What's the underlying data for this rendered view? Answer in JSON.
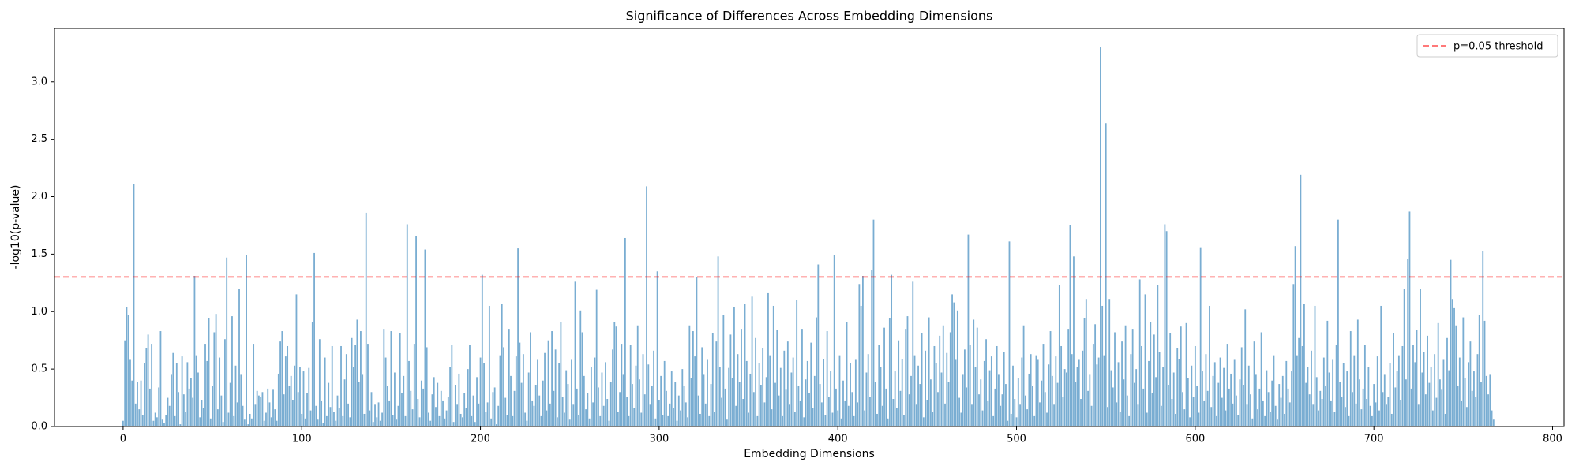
{
  "chart_data": {
    "type": "bar",
    "title": "Significance of Differences Across Embedding Dimensions",
    "xlabel": "Embedding Dimensions",
    "ylabel": "-log10(p-value)",
    "color": "#1f77b4",
    "opacity": 0.6,
    "threshold": {
      "value": 1.301,
      "label": "p=0.05 threshold",
      "color": "#ff0000",
      "opacity": 0.6,
      "style": "dashed"
    },
    "legend": "upper right",
    "grid": false,
    "xlim": [
      -38.4,
      806.4
    ],
    "xticks": [
      0,
      100,
      200,
      300,
      400,
      500,
      600,
      700,
      800
    ],
    "ylim": [
      0,
      3.465
    ],
    "yticks": [
      {
        "value": 0,
        "label": "0.0"
      },
      0.5,
      {
        "value": 1,
        "label": "1.0"
      },
      1.5,
      {
        "value": 2,
        "label": "2.0"
      },
      2.5,
      {
        "value": 3,
        "label": "3.0"
      }
    ],
    "x": [
      0,
      1,
      2,
      3,
      4,
      5,
      6,
      7,
      8,
      9,
      10,
      11,
      12,
      13,
      14,
      15,
      16,
      17,
      18,
      19,
      20,
      21,
      22,
      23,
      24,
      25,
      26,
      27,
      28,
      29,
      30,
      31,
      32,
      33,
      34,
      35,
      36,
      37,
      38,
      39,
      40,
      41,
      42,
      43,
      44,
      45,
      46,
      47,
      48,
      49,
      50,
      51,
      52,
      53,
      54,
      55,
      56,
      57,
      58,
      59,
      60,
      61,
      62,
      63,
      64,
      65,
      66,
      67,
      68,
      69,
      70,
      71,
      72,
      73,
      74,
      75,
      76,
      77,
      78,
      79,
      80,
      81,
      82,
      83,
      84,
      85,
      86,
      87,
      88,
      89,
      90,
      91,
      92,
      93,
      94,
      95,
      96,
      97,
      98,
      99,
      100,
      101,
      102,
      103,
      104,
      105,
      106,
      107,
      108,
      109,
      110,
      111,
      112,
      113,
      114,
      115,
      116,
      117,
      118,
      119,
      120,
      121,
      122,
      123,
      124,
      125,
      126,
      127,
      128,
      129,
      130,
      131,
      132,
      133,
      134,
      135,
      136,
      137,
      138,
      139,
      140,
      141,
      142,
      143,
      144,
      145,
      146,
      147,
      148,
      149,
      150,
      151,
      152,
      153,
      154,
      155,
      156,
      157,
      158,
      159,
      160,
      161,
      162,
      163,
      164,
      165,
      166,
      167,
      168,
      169,
      170,
      171,
      172,
      173,
      174,
      175,
      176,
      177,
      178,
      179,
      180,
      181,
      182,
      183,
      184,
      185,
      186,
      187,
      188,
      189,
      190,
      191,
      192,
      193,
      194,
      195,
      196,
      197,
      198,
      199,
      200,
      201,
      202,
      203,
      204,
      205,
      206,
      207,
      208,
      209,
      210,
      211,
      212,
      213,
      214,
      215,
      216,
      217,
      218,
      219,
      220,
      221,
      222,
      223,
      224,
      225,
      226,
      227,
      228,
      229,
      230,
      231,
      232,
      233,
      234,
      235,
      236,
      237,
      238,
      239,
      240,
      241,
      242,
      243,
      244,
      245,
      246,
      247,
      248,
      249,
      250,
      251,
      252,
      253,
      254,
      255,
      256,
      257,
      258,
      259,
      260,
      261,
      262,
      263,
      264,
      265,
      266,
      267,
      268,
      269,
      270,
      271,
      272,
      273,
      274,
      275,
      276,
      277,
      278,
      279,
      280,
      281,
      282,
      283,
      284,
      285,
      286,
      287,
      288,
      289,
      290,
      291,
      292,
      293,
      294,
      295,
      296,
      297,
      298,
      299,
      300,
      301,
      302,
      303,
      304,
      305,
      306,
      307,
      308,
      309,
      310,
      311,
      312,
      313,
      314,
      315,
      316,
      317,
      318,
      319,
      320,
      321,
      322,
      323,
      324,
      325,
      326,
      327,
      328,
      329,
      330,
      331,
      332,
      333,
      334,
      335,
      336,
      337,
      338,
      339,
      340,
      341,
      342,
      343,
      344,
      345,
      346,
      347,
      348,
      349,
      350,
      351,
      352,
      353,
      354,
      355,
      356,
      357,
      358,
      359,
      360,
      361,
      362,
      363,
      364,
      365,
      366,
      367,
      368,
      369,
      370,
      371,
      372,
      373,
      374,
      375,
      376,
      377,
      378,
      379,
      380,
      381,
      382,
      383,
      384,
      385,
      386,
      387,
      388,
      389,
      390,
      391,
      392,
      393,
      394,
      395,
      396,
      397,
      398,
      399,
      400,
      401,
      402,
      403,
      404,
      405,
      406,
      407,
      408,
      409,
      410,
      411,
      412,
      413,
      414,
      415,
      416,
      417,
      418,
      419,
      420,
      421,
      422,
      423,
      424,
      425,
      426,
      427,
      428,
      429,
      430,
      431,
      432,
      433,
      434,
      435,
      436,
      437,
      438,
      439,
      440,
      441,
      442,
      443,
      444,
      445,
      446,
      447,
      448,
      449,
      450,
      451,
      452,
      453,
      454,
      455,
      456,
      457,
      458,
      459,
      460,
      461,
      462,
      463,
      464,
      465,
      466,
      467,
      468,
      469,
      470,
      471,
      472,
      473,
      474,
      475,
      476,
      477,
      478,
      479,
      480,
      481,
      482,
      483,
      484,
      485,
      486,
      487,
      488,
      489,
      490,
      491,
      492,
      493,
      494,
      495,
      496,
      497,
      498,
      499,
      500,
      501,
      502,
      503,
      504,
      505,
      506,
      507,
      508,
      509,
      510,
      511,
      512,
      513,
      514,
      515,
      516,
      517,
      518,
      519,
      520,
      521,
      522,
      523,
      524,
      525,
      526,
      527,
      528,
      529,
      530,
      531,
      532,
      533,
      534,
      535,
      536,
      537,
      538,
      539,
      540,
      541,
      542,
      543,
      544,
      545,
      546,
      547,
      548,
      549,
      550,
      551,
      552,
      553,
      554,
      555,
      556,
      557,
      558,
      559,
      560,
      561,
      562,
      563,
      564,
      565,
      566,
      567,
      568,
      569,
      570,
      571,
      572,
      573,
      574,
      575,
      576,
      577,
      578,
      579,
      580,
      581,
      582,
      583,
      584,
      585,
      586,
      587,
      588,
      589,
      590,
      591,
      592,
      593,
      594,
      595,
      596,
      597,
      598,
      599,
      600,
      601,
      602,
      603,
      604,
      605,
      606,
      607,
      608,
      609,
      610,
      611,
      612,
      613,
      614,
      615,
      616,
      617,
      618,
      619,
      620,
      621,
      622,
      623,
      624,
      625,
      626,
      627,
      628,
      629,
      630,
      631,
      632,
      633,
      634,
      635,
      636,
      637,
      638,
      639,
      640,
      641,
      642,
      643,
      644,
      645,
      646,
      647,
      648,
      649,
      650,
      651,
      652,
      653,
      654,
      655,
      656,
      657,
      658,
      659,
      660,
      661,
      662,
      663,
      664,
      665,
      666,
      667,
      668,
      669,
      670,
      671,
      672,
      673,
      674,
      675,
      676,
      677,
      678,
      679,
      680,
      681,
      682,
      683,
      684,
      685,
      686,
      687,
      688,
      689,
      690,
      691,
      692,
      693,
      694,
      695,
      696,
      697,
      698,
      699,
      700,
      701,
      702,
      703,
      704,
      705,
      706,
      707,
      708,
      709,
      710,
      711,
      712,
      713,
      714,
      715,
      716,
      717,
      718,
      719,
      720,
      721,
      722,
      723,
      724,
      725,
      726,
      727,
      728,
      729,
      730,
      731,
      732,
      733,
      734,
      735,
      736,
      737,
      738,
      739,
      740,
      741,
      742,
      743,
      744,
      745,
      746,
      747,
      748,
      749,
      750,
      751,
      752,
      753,
      754,
      755,
      756,
      757,
      758,
      759,
      760,
      761,
      762,
      763,
      764,
      765,
      766,
      767
    ],
    "values": [
      0.05,
      0.75,
      1.04,
      0.97,
      0.58,
      0.4,
      2.11,
      0.2,
      0.39,
      0.15,
      0.4,
      0.1,
      0.55,
      0.68,
      0.8,
      0.33,
      0.72,
      0.05,
      0.12,
      0.08,
      0.34,
      0.83,
      0.06,
      0.03,
      0.1,
      0.25,
      0.18,
      0.45,
      0.64,
      0.09,
      0.55,
      0.3,
      0.02,
      0.61,
      0.28,
      0.13,
      0.56,
      0.33,
      0.42,
      0.25,
      1.31,
      0.62,
      0.47,
      0.08,
      0.23,
      0.16,
      0.72,
      0.57,
      0.94,
      0.07,
      0.35,
      0.82,
      0.98,
      0.15,
      0.6,
      0.27,
      0.04,
      0.76,
      1.47,
      0.12,
      0.38,
      0.96,
      0.09,
      0.53,
      0.21,
      1.2,
      0.45,
      0.18,
      0.06,
      1.49,
      0.02,
      0.11,
      0.07,
      0.72,
      0.19,
      0.31,
      0.27,
      0.26,
      0.3,
      0.05,
      0.12,
      0.33,
      0.21,
      0.08,
      0.32,
      0.15,
      0.05,
      0.46,
      0.74,
      0.83,
      0.28,
      0.61,
      0.7,
      0.35,
      0.44,
      0.23,
      0.53,
      1.15,
      0.3,
      0.52,
      0.11,
      0.48,
      0.07,
      0.29,
      0.51,
      0.14,
      0.91,
      1.51,
      0.18,
      0.06,
      0.76,
      0.22,
      0.03,
      0.6,
      0.09,
      0.38,
      0.17,
      0.7,
      0.13,
      0.05,
      0.27,
      0.16,
      0.7,
      0.09,
      0.41,
      0.63,
      0.2,
      0.08,
      0.77,
      0.52,
      0.71,
      0.93,
      0.39,
      0.83,
      0.45,
      0.11,
      1.86,
      0.72,
      0.14,
      0.3,
      0.04,
      0.19,
      0.08,
      0.21,
      0.05,
      0.12,
      0.85,
      0.6,
      0.35,
      0.22,
      0.83,
      0.1,
      0.47,
      0.06,
      0.18,
      0.81,
      0.29,
      0.44,
      0.09,
      1.76,
      0.57,
      0.31,
      0.15,
      0.72,
      1.66,
      0.24,
      0.08,
      0.4,
      0.33,
      1.54,
      0.69,
      0.12,
      0.05,
      0.28,
      0.43,
      0.17,
      0.38,
      0.09,
      0.31,
      0.22,
      0.07,
      0.14,
      0.26,
      0.52,
      0.71,
      0.04,
      0.36,
      0.19,
      0.46,
      0.11,
      0.08,
      0.29,
      0.16,
      0.5,
      0.71,
      0.09,
      0.27,
      0.04,
      0.43,
      0.2,
      0.6,
      1.32,
      0.55,
      0.13,
      0.21,
      1.05,
      0.07,
      0.3,
      0.34,
      0.02,
      0.18,
      0.62,
      1.07,
      0.69,
      0.25,
      0.1,
      0.85,
      0.44,
      0.09,
      0.31,
      0.61,
      1.55,
      0.73,
      0.38,
      0.63,
      0.12,
      0.05,
      0.47,
      0.82,
      0.22,
      0.18,
      0.36,
      0.58,
      0.27,
      0.09,
      0.4,
      0.64,
      0.14,
      0.75,
      0.2,
      0.83,
      0.31,
      0.67,
      0.08,
      0.55,
      0.91,
      0.26,
      0.12,
      0.49,
      0.37,
      0.06,
      0.58,
      0.19,
      1.26,
      0.33,
      0.1,
      1.01,
      0.82,
      0.44,
      0.15,
      0.29,
      0.07,
      0.52,
      0.21,
      0.6,
      1.19,
      0.34,
      0.09,
      0.47,
      0.18,
      0.56,
      0.24,
      0.05,
      0.39,
      0.67,
      0.91,
      0.87,
      0.13,
      0.3,
      0.72,
      0.45,
      1.64,
      0.26,
      0.09,
      0.71,
      0.37,
      0.16,
      0.53,
      0.88,
      0.41,
      0.12,
      0.63,
      0.28,
      2.09,
      0.54,
      0.19,
      0.35,
      0.66,
      0.07,
      1.35,
      0.23,
      0.44,
      0.1,
      0.57,
      0.31,
      0.09,
      0.2,
      0.48,
      0.16,
      0.39,
      0.05,
      0.27,
      0.14,
      0.5,
      0.35,
      0.21,
      0.08,
      0.88,
      0.42,
      0.83,
      0.61,
      1.3,
      0.27,
      0.11,
      0.69,
      0.45,
      0.2,
      0.58,
      0.09,
      0.37,
      0.81,
      0.13,
      0.74,
      1.48,
      0.52,
      0.25,
      0.97,
      0.33,
      0.06,
      0.51,
      0.8,
      0.42,
      1.04,
      0.18,
      0.63,
      0.39,
      0.85,
      0.24,
      1.07,
      0.57,
      0.12,
      0.46,
      1.13,
      0.3,
      0.77,
      0.09,
      0.55,
      0.36,
      0.68,
      0.21,
      0.43,
      1.16,
      0.62,
      0.15,
      1.05,
      0.38,
      0.84,
      0.27,
      0.51,
      0.09,
      0.66,
      0.32,
      0.74,
      0.19,
      0.47,
      0.6,
      0.13,
      1.1,
      0.35,
      0.22,
      0.85,
      0.08,
      0.41,
      0.57,
      0.29,
      0.73,
      0.16,
      0.44,
      0.95,
      1.41,
      0.37,
      0.21,
      0.59,
      0.1,
      0.83,
      0.26,
      0.48,
      0.12,
      1.49,
      0.33,
      0.14,
      0.62,
      0.07,
      0.4,
      0.22,
      0.91,
      0.18,
      0.55,
      0.3,
      0.09,
      0.58,
      0.21,
      1.24,
      1.05,
      1.31,
      0.14,
      0.47,
      0.63,
      0.26,
      1.36,
      1.8,
      0.39,
      0.11,
      0.71,
      0.52,
      0.18,
      0.86,
      0.33,
      0.07,
      0.94,
      1.32,
      0.24,
      0.48,
      0.16,
      0.75,
      0.31,
      0.59,
      0.1,
      0.85,
      0.96,
      0.28,
      0.44,
      1.26,
      0.62,
      0.19,
      0.53,
      0.37,
      0.81,
      0.08,
      0.66,
      0.23,
      0.95,
      0.41,
      0.13,
      0.7,
      0.55,
      0.3,
      0.79,
      0.47,
      0.88,
      0.2,
      0.64,
      0.39,
      0.82,
      1.15,
      1.08,
      0.58,
      1.01,
      0.25,
      0.12,
      0.45,
      0.67,
      0.34,
      1.67,
      0.71,
      0.19,
      0.93,
      0.52,
      0.86,
      0.28,
      0.41,
      0.14,
      0.57,
      0.76,
      0.22,
      0.49,
      0.61,
      0.09,
      0.33,
      0.7,
      0.45,
      0.18,
      0.28,
      0.65,
      0.37,
      0.05,
      1.61,
      0.11,
      0.53,
      0.24,
      0.08,
      0.42,
      0.19,
      0.6,
      0.88,
      0.27,
      0.15,
      0.46,
      0.63,
      0.35,
      0.09,
      0.62,
      0.58,
      0.21,
      0.4,
      0.72,
      0.3,
      0.12,
      0.54,
      0.83,
      0.44,
      0.19,
      0.61,
      0.38,
      1.23,
      0.7,
      0.26,
      0.5,
      0.47,
      0.85,
      1.75,
      0.63,
      1.48,
      0.39,
      0.52,
      0.58,
      0.24,
      0.66,
      0.94,
      1.11,
      0.31,
      0.45,
      0.18,
      0.72,
      0.89,
      0.54,
      0.6,
      3.3,
      1.05,
      0.62,
      2.64,
      0.17,
      1.11,
      0.49,
      0.34,
      0.82,
      0.21,
      0.56,
      0.13,
      0.74,
      0.41,
      0.88,
      0.27,
      0.09,
      0.63,
      0.85,
      0.38,
      0.5,
      0.19,
      1.28,
      0.7,
      0.33,
      1.15,
      0.12,
      0.57,
      0.91,
      0.29,
      0.8,
      0.43,
      1.23,
      0.65,
      0.18,
      0.52,
      1.76,
      1.7,
      0.36,
      0.81,
      0.24,
      0.47,
      0.11,
      0.68,
      0.59,
      0.87,
      0.3,
      0.15,
      0.9,
      0.42,
      0.08,
      0.53,
      0.26,
      0.7,
      0.35,
      0.12,
      1.56,
      0.48,
      0.22,
      0.63,
      0.31,
      1.05,
      0.17,
      0.44,
      0.56,
      0.09,
      0.38,
      0.6,
      0.25,
      0.51,
      0.14,
      0.72,
      0.33,
      0.46,
      0.2,
      0.58,
      0.27,
      0.1,
      0.41,
      0.69,
      0.36,
      1.02,
      0.19,
      0.53,
      0.28,
      0.07,
      0.74,
      0.45,
      0.15,
      0.33,
      0.82,
      0.22,
      0.09,
      0.49,
      0.3,
      0.13,
      0.4,
      0.62,
      0.18,
      0.06,
      0.37,
      0.25,
      0.44,
      0.11,
      0.57,
      0.33,
      0.21,
      0.48,
      1.24,
      1.57,
      0.62,
      0.77,
      2.19,
      0.7,
      1.07,
      0.38,
      0.52,
      0.28,
      0.66,
      0.19,
      1.05,
      0.43,
      0.14,
      0.31,
      0.24,
      0.6,
      0.35,
      0.92,
      0.47,
      0.22,
      0.58,
      0.13,
      0.71,
      1.8,
      0.39,
      0.26,
      0.55,
      0.17,
      0.48,
      0.09,
      0.83,
      0.3,
      0.62,
      0.2,
      0.93,
      0.41,
      0.15,
      0.33,
      0.71,
      0.24,
      0.52,
      0.18,
      0.09,
      0.37,
      0.21,
      0.61,
      0.14,
      1.05,
      0.3,
      0.45,
      0.19,
      0.26,
      0.55,
      0.11,
      0.81,
      0.34,
      0.48,
      0.62,
      0.23,
      0.7,
      1.2,
      0.41,
      1.46,
      1.87,
      0.33,
      0.71,
      0.56,
      0.84,
      0.19,
      1.2,
      0.47,
      0.65,
      0.28,
      0.79,
      0.38,
      0.52,
      0.14,
      0.63,
      0.25,
      0.9,
      0.41,
      0.32,
      0.58,
      0.11,
      0.77,
      0.49,
      1.45,
      1.11,
      1.03,
      0.88,
      0.35,
      0.6,
      0.22,
      0.95,
      0.42,
      0.17,
      0.56,
      0.74,
      0.31,
      0.48,
      0.26,
      0.63,
      0.97,
      0.39,
      1.53,
      0.92,
      0.44,
      0.28,
      0.45,
      0.14,
      0.06
    ]
  }
}
